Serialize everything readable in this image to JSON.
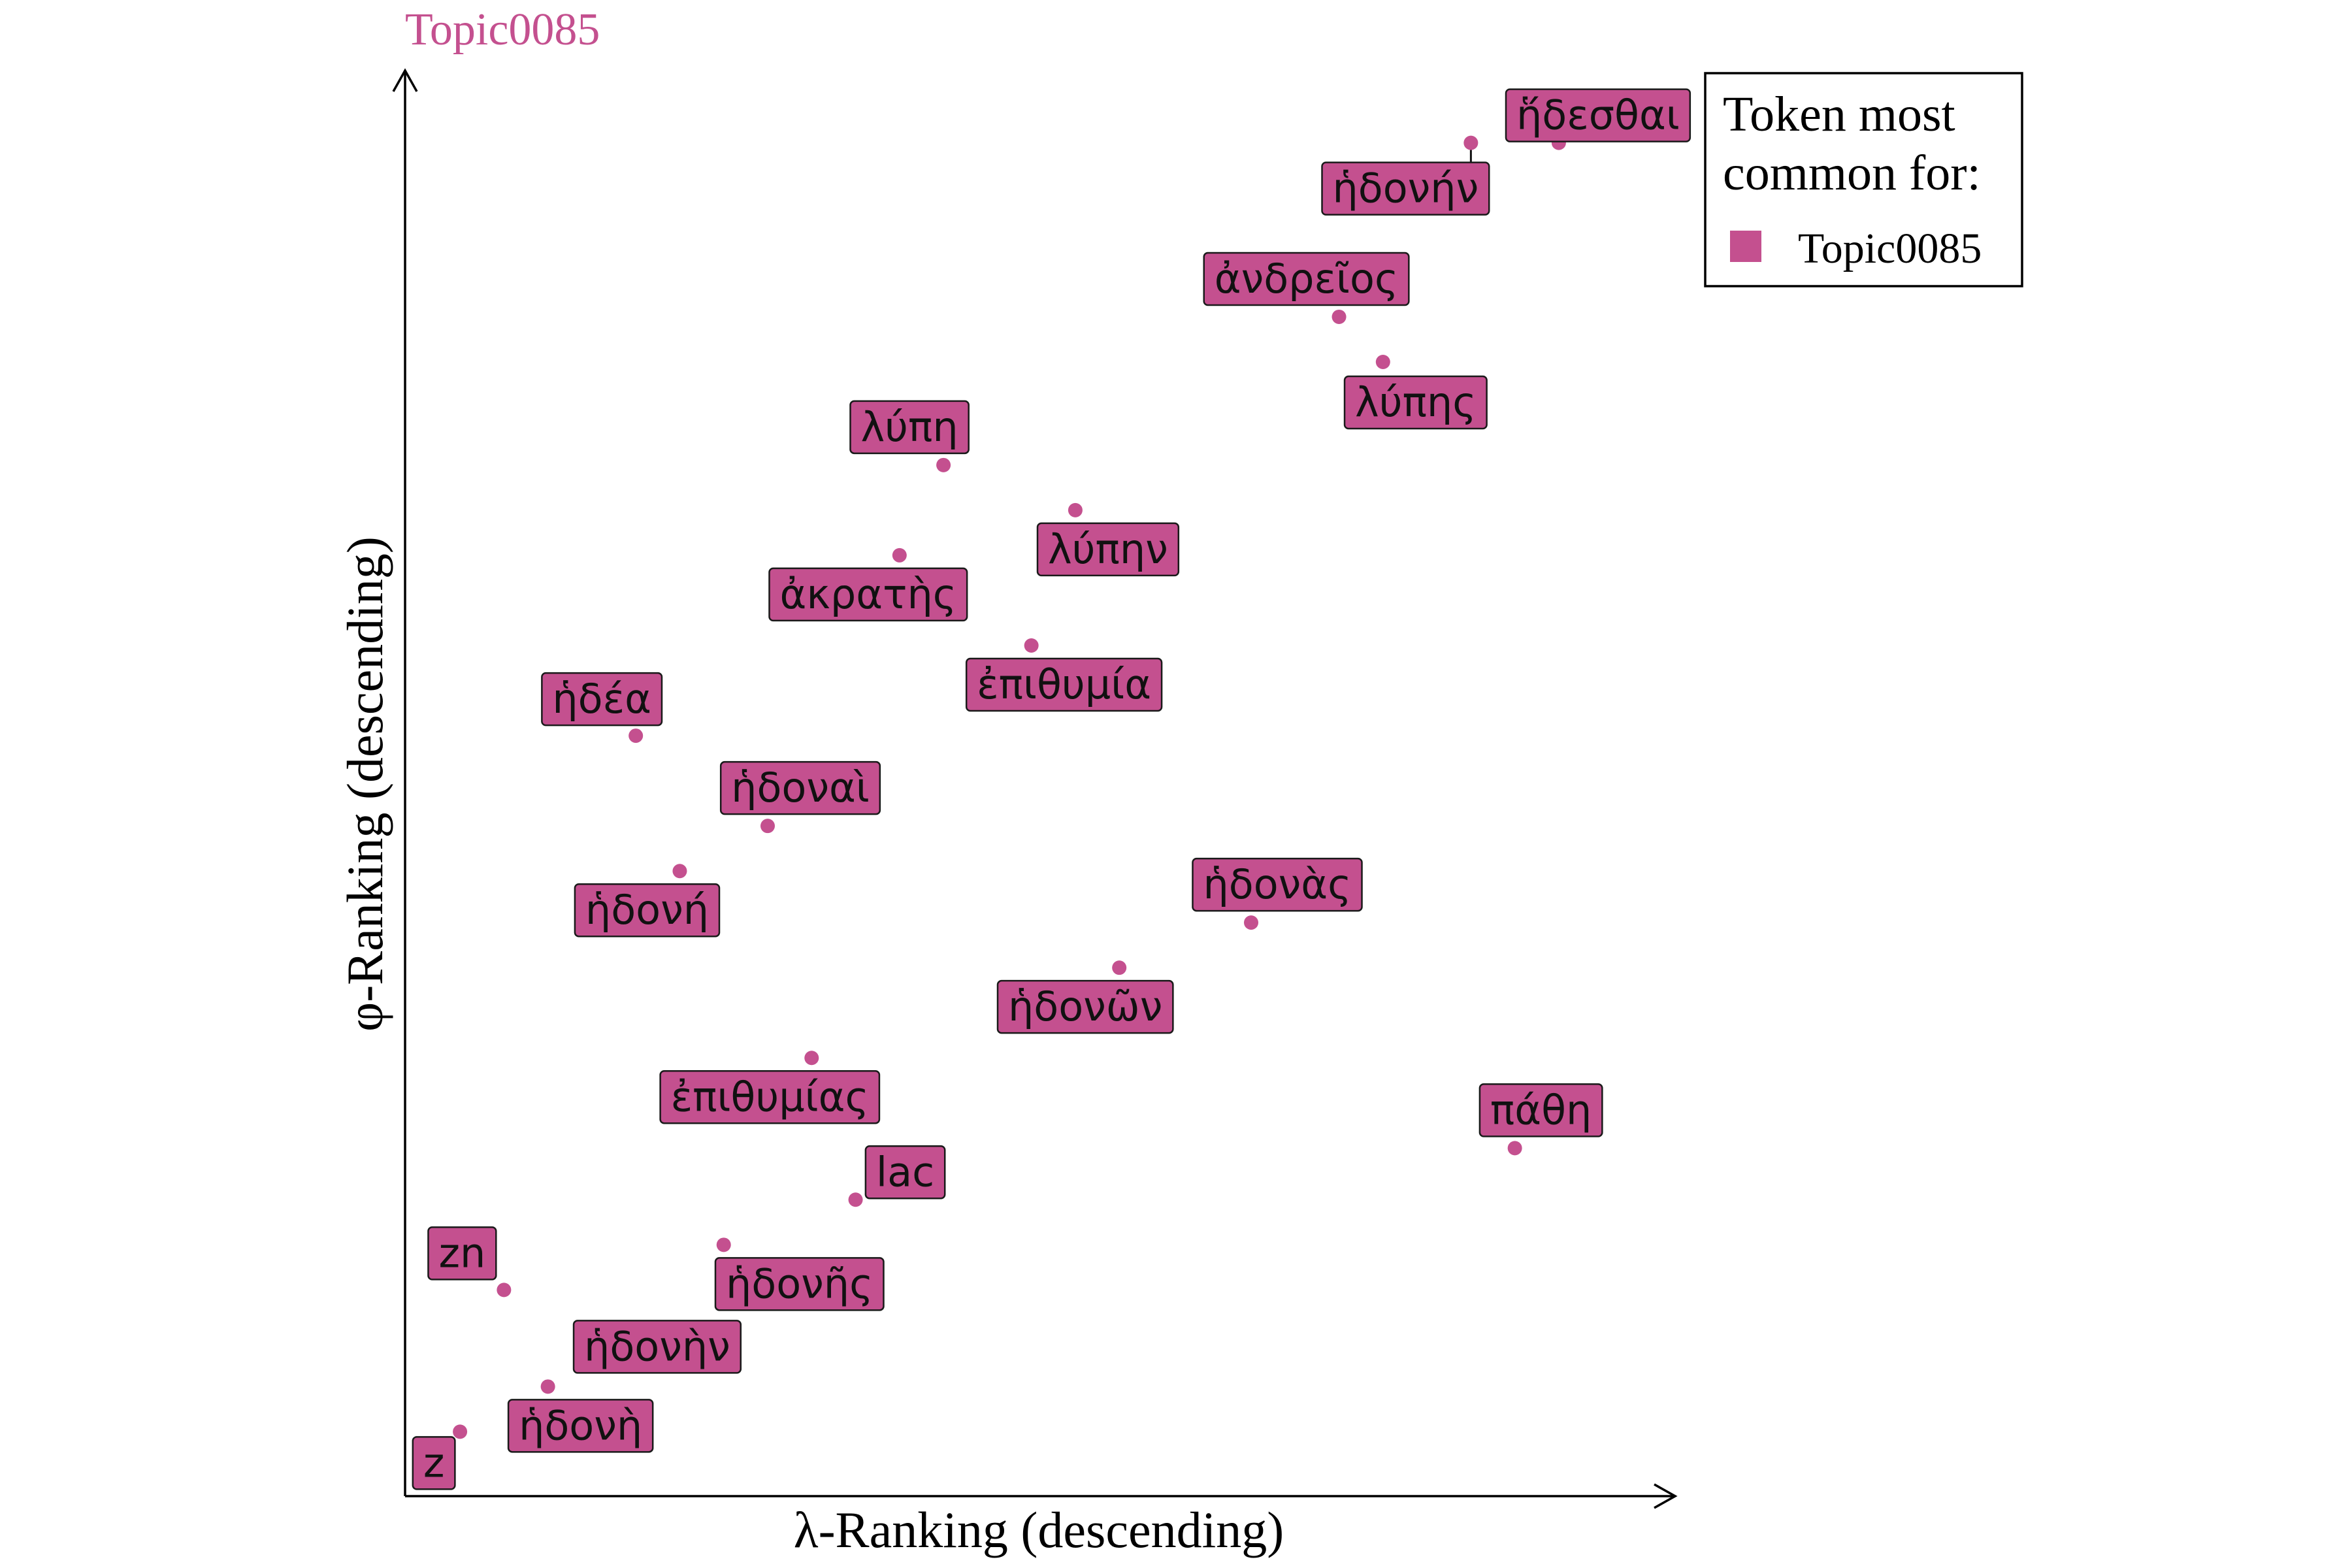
{
  "colors": {
    "accent": "#c4508f",
    "axis": "#000000"
  },
  "chart_data": {
    "type": "scatter",
    "title": "Topic0085",
    "xlabel": "λ-Ranking (descending)",
    "ylabel": "φ-Ranking (descending)",
    "xlim": [
      0,
      22
    ],
    "ylim": [
      0,
      22
    ],
    "grid": false,
    "legend_position": "top-right",
    "legend": {
      "title_line1": "Token most",
      "title_line2": "common for:",
      "entries": [
        {
          "name": "Topic0085",
          "color": "#c4508f"
        }
      ]
    },
    "points": [
      {
        "token": "ἥδεσθαι",
        "x": 21.0,
        "y": 21.0
      },
      {
        "token": "ἡδονήν",
        "x": 19.4,
        "y": 21.0
      },
      {
        "token": "ἀνδρεῖος",
        "x": 17.0,
        "y": 18.3
      },
      {
        "token": "λύπης",
        "x": 17.8,
        "y": 17.6
      },
      {
        "token": "λύπη",
        "x": 9.8,
        "y": 16.0
      },
      {
        "token": "λύπην",
        "x": 12.2,
        "y": 15.3
      },
      {
        "token": "ἀκρατὴς",
        "x": 9.0,
        "y": 14.6
      },
      {
        "token": "ἐπιθυμία",
        "x": 11.4,
        "y": 13.2
      },
      {
        "token": "ἡδέα",
        "x": 4.2,
        "y": 11.8
      },
      {
        "token": "ἡδοναὶ",
        "x": 6.6,
        "y": 10.4
      },
      {
        "token": "ἡδονή",
        "x": 5.0,
        "y": 9.7
      },
      {
        "token": "ἡδονὰς",
        "x": 15.4,
        "y": 8.9
      },
      {
        "token": "ἡδονῶν",
        "x": 13.0,
        "y": 8.2
      },
      {
        "token": "ἐπιθυμίας",
        "x": 7.4,
        "y": 6.8
      },
      {
        "token": "πάθη",
        "x": 20.2,
        "y": 5.4
      },
      {
        "token": "lac",
        "x": 8.2,
        "y": 4.6
      },
      {
        "token": "ἡδονῆς",
        "x": 5.8,
        "y": 3.9
      },
      {
        "token": "zn",
        "x": 1.8,
        "y": 3.2
      },
      {
        "token": "ἡδονὴν",
        "x": 3.4,
        "y": 2.5
      },
      {
        "token": "ἡδονὴ",
        "x": 2.6,
        "y": 1.7
      },
      {
        "token": "z",
        "x": 1.0,
        "y": 1.0
      }
    ]
  }
}
